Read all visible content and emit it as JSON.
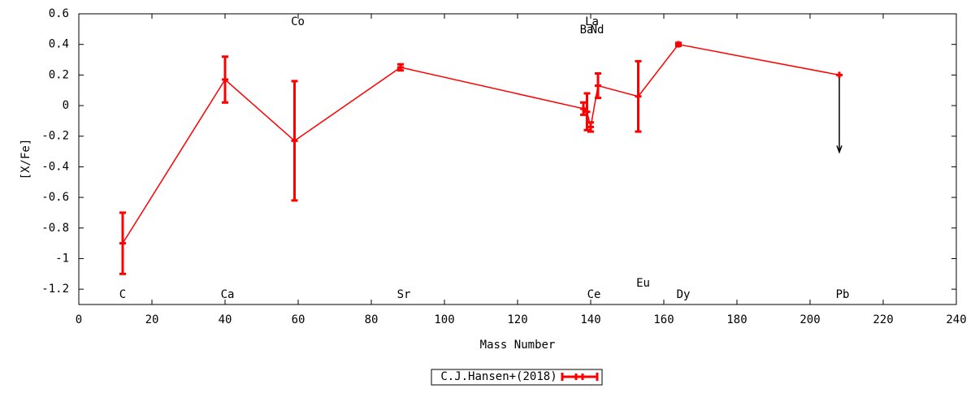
{
  "chart_data": {
    "type": "errorline",
    "xlabel": "Mass Number",
    "ylabel": "[X/Fe]",
    "xlim": [
      0,
      240
    ],
    "xticks": [
      0,
      20,
      40,
      60,
      80,
      100,
      120,
      140,
      160,
      180,
      200,
      220,
      240
    ],
    "ylim": [
      -1.3,
      0.6
    ],
    "yticks": [
      -1.2,
      -1,
      -0.8,
      -0.6,
      -0.4,
      -0.2,
      0,
      0.2,
      0.4,
      0.6
    ],
    "labels": [
      "C",
      "Ca",
      "Co",
      "Sr",
      "Ba",
      "La",
      "Ce",
      "Nd",
      "Eu",
      "Dy",
      "Pb"
    ],
    "series": [
      {
        "name": "C.J.Hansen+(2018)",
        "color": "#ff0000",
        "x": [
          12,
          40,
          59,
          88,
          138,
          139,
          140,
          142,
          153,
          164,
          208
        ],
        "values": [
          -0.9,
          0.17,
          -0.23,
          0.25,
          -0.02,
          -0.04,
          -0.14,
          0.13,
          0.06,
          0.4,
          0.2
        ],
        "errors": [
          0.2,
          0.15,
          0.39,
          0.02,
          0.04,
          0.12,
          0.03,
          0.08,
          0.23,
          0.01,
          null
        ],
        "upper_limits": [
          false,
          false,
          false,
          false,
          false,
          false,
          false,
          false,
          false,
          false,
          true
        ]
      }
    ]
  }
}
